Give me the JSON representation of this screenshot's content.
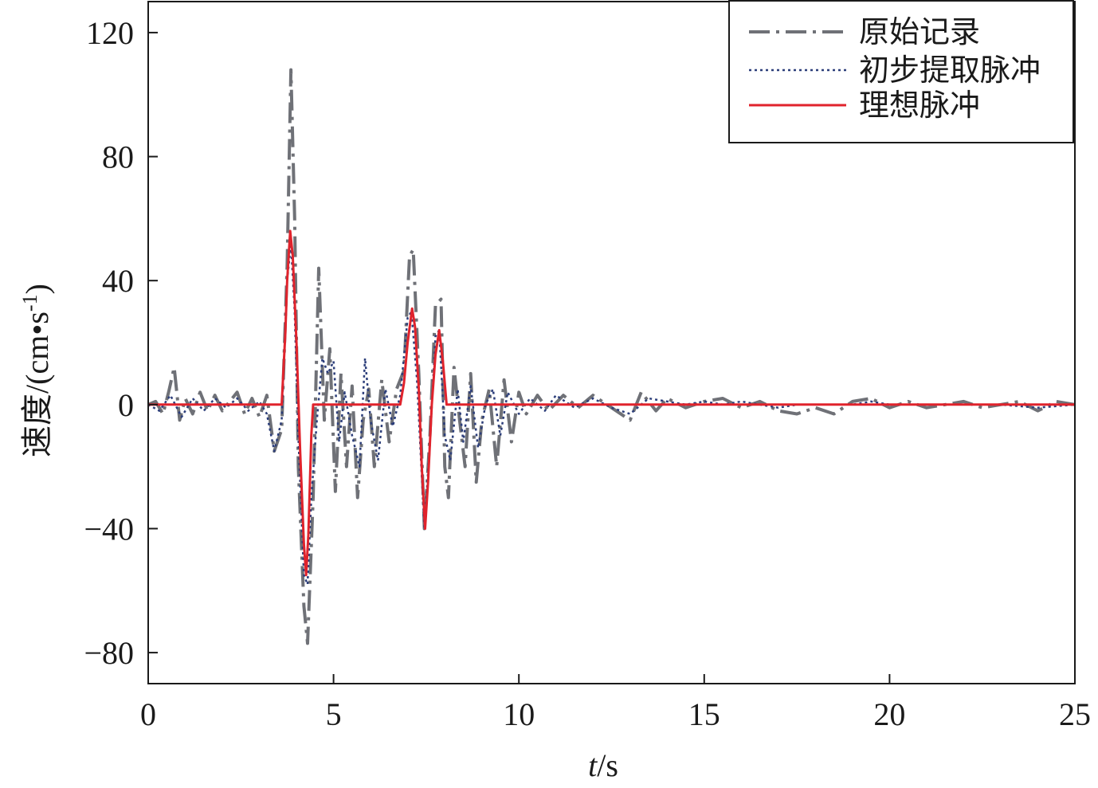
{
  "chart_data": {
    "type": "line",
    "xlabel_italic": "t",
    "xlabel_unit": "/s",
    "ylabel_main": "速度/(cm•s",
    "ylabel_sup": "-1",
    "ylabel_close": ")",
    "xlim": [
      0,
      25
    ],
    "ylim": [
      -90,
      130
    ],
    "xticks": [
      0,
      5,
      10,
      15,
      20,
      25
    ],
    "xtick_labels": [
      "0",
      "5",
      "10",
      "15",
      "20",
      "25"
    ],
    "yticks": [
      120,
      80,
      40,
      0,
      -40,
      -80
    ],
    "ytick_labels": [
      "120",
      "80",
      "40",
      "0",
      "−40",
      "−80"
    ],
    "grid": false,
    "legend_position": "top-right",
    "series": [
      {
        "name": "原始记录",
        "style": "dash-dot",
        "color": "#6f7177",
        "points": [
          [
            0.0,
            0
          ],
          [
            0.2,
            1
          ],
          [
            0.4,
            -3
          ],
          [
            0.55,
            4
          ],
          [
            0.7,
            12
          ],
          [
            0.85,
            -5
          ],
          [
            1.0,
            2
          ],
          [
            1.2,
            -3
          ],
          [
            1.4,
            4
          ],
          [
            1.6,
            -2
          ],
          [
            1.8,
            3
          ],
          [
            2.0,
            -2
          ],
          [
            2.2,
            1
          ],
          [
            2.4,
            4
          ],
          [
            2.6,
            -3
          ],
          [
            2.8,
            2
          ],
          [
            3.0,
            -4
          ],
          [
            3.2,
            3
          ],
          [
            3.4,
            -15
          ],
          [
            3.6,
            -8
          ],
          [
            3.75,
            45
          ],
          [
            3.85,
            108
          ],
          [
            3.95,
            60
          ],
          [
            4.05,
            -20
          ],
          [
            4.2,
            -65
          ],
          [
            4.3,
            -77
          ],
          [
            4.45,
            -30
          ],
          [
            4.6,
            44
          ],
          [
            4.75,
            -5
          ],
          [
            4.9,
            18
          ],
          [
            5.05,
            -28
          ],
          [
            5.2,
            10
          ],
          [
            5.35,
            -20
          ],
          [
            5.5,
            6
          ],
          [
            5.65,
            -30
          ],
          [
            5.8,
            -5
          ],
          [
            5.95,
            5
          ],
          [
            6.1,
            -20
          ],
          [
            6.3,
            8
          ],
          [
            6.5,
            -12
          ],
          [
            6.7,
            5
          ],
          [
            6.9,
            11
          ],
          [
            7.05,
            48
          ],
          [
            7.15,
            50
          ],
          [
            7.3,
            10
          ],
          [
            7.45,
            -40
          ],
          [
            7.6,
            -10
          ],
          [
            7.75,
            32
          ],
          [
            7.9,
            34
          ],
          [
            8.0,
            -20
          ],
          [
            8.1,
            -30
          ],
          [
            8.25,
            12
          ],
          [
            8.4,
            -5
          ],
          [
            8.55,
            -20
          ],
          [
            8.7,
            10
          ],
          [
            8.85,
            -25
          ],
          [
            9.0,
            -5
          ],
          [
            9.2,
            5
          ],
          [
            9.4,
            -20
          ],
          [
            9.6,
            8
          ],
          [
            9.8,
            -12
          ],
          [
            10.0,
            4
          ],
          [
            10.2,
            -3
          ],
          [
            10.5,
            3
          ],
          [
            10.8,
            -2
          ],
          [
            11.2,
            3
          ],
          [
            11.6,
            -1
          ],
          [
            12.0,
            3
          ],
          [
            12.5,
            -1
          ],
          [
            13.0,
            -5
          ],
          [
            13.3,
            4
          ],
          [
            13.7,
            -2
          ],
          [
            14.0,
            2
          ],
          [
            14.5,
            -1
          ],
          [
            15.0,
            1
          ],
          [
            15.5,
            2
          ],
          [
            16.0,
            -1
          ],
          [
            16.5,
            1
          ],
          [
            17.0,
            -2
          ],
          [
            17.5,
            -3
          ],
          [
            18.0,
            -1
          ],
          [
            18.5,
            -3
          ],
          [
            19.0,
            1
          ],
          [
            19.5,
            2
          ],
          [
            20.0,
            -1
          ],
          [
            20.5,
            1
          ],
          [
            21.0,
            -1
          ],
          [
            21.5,
            0
          ],
          [
            22.0,
            1
          ],
          [
            22.5,
            -1
          ],
          [
            23.0,
            0
          ],
          [
            23.5,
            1
          ],
          [
            24.0,
            -2
          ],
          [
            24.5,
            1
          ],
          [
            25.0,
            0
          ]
        ]
      },
      {
        "name": "初步提取脉冲",
        "style": "dotted",
        "color": "#2c3e7a",
        "points": [
          [
            0.0,
            0
          ],
          [
            0.3,
            -2
          ],
          [
            0.6,
            3
          ],
          [
            0.9,
            -4
          ],
          [
            1.2,
            2
          ],
          [
            1.5,
            -2
          ],
          [
            1.8,
            2
          ],
          [
            2.1,
            -1
          ],
          [
            2.4,
            2
          ],
          [
            2.7,
            -2
          ],
          [
            3.0,
            1
          ],
          [
            3.2,
            -3
          ],
          [
            3.4,
            -15
          ],
          [
            3.6,
            -5
          ],
          [
            3.75,
            40
          ],
          [
            3.85,
            52
          ],
          [
            3.95,
            30
          ],
          [
            4.05,
            -10
          ],
          [
            4.2,
            -55
          ],
          [
            4.3,
            -58
          ],
          [
            4.4,
            -30
          ],
          [
            4.55,
            -5
          ],
          [
            4.7,
            15
          ],
          [
            4.85,
            10
          ],
          [
            5.0,
            14
          ],
          [
            5.15,
            -12
          ],
          [
            5.3,
            4
          ],
          [
            5.5,
            -10
          ],
          [
            5.7,
            -20
          ],
          [
            5.85,
            15
          ],
          [
            6.0,
            -5
          ],
          [
            6.2,
            -18
          ],
          [
            6.4,
            5
          ],
          [
            6.6,
            -7
          ],
          [
            6.8,
            3
          ],
          [
            7.0,
            28
          ],
          [
            7.1,
            30
          ],
          [
            7.25,
            8
          ],
          [
            7.45,
            -40
          ],
          [
            7.6,
            -12
          ],
          [
            7.75,
            22
          ],
          [
            7.85,
            24
          ],
          [
            8.0,
            -10
          ],
          [
            8.15,
            -18
          ],
          [
            8.35,
            5
          ],
          [
            8.5,
            -12
          ],
          [
            8.7,
            6
          ],
          [
            8.9,
            -14
          ],
          [
            9.1,
            0
          ],
          [
            9.3,
            5
          ],
          [
            9.5,
            -10
          ],
          [
            9.7,
            4
          ],
          [
            10.0,
            -3
          ],
          [
            10.3,
            2
          ],
          [
            10.7,
            -2
          ],
          [
            11.0,
            3
          ],
          [
            11.5,
            -1
          ],
          [
            12.0,
            2
          ],
          [
            12.5,
            -1
          ],
          [
            13.0,
            -3
          ],
          [
            13.5,
            2
          ],
          [
            14.0,
            1
          ],
          [
            14.5,
            0
          ],
          [
            15.0,
            1
          ],
          [
            15.5,
            0
          ],
          [
            16.0,
            1
          ],
          [
            16.5,
            0
          ],
          [
            17.0,
            -1
          ],
          [
            17.5,
            0
          ],
          [
            18.0,
            0
          ],
          [
            18.5,
            0
          ],
          [
            19.0,
            0
          ],
          [
            19.5,
            1
          ],
          [
            20.0,
            0
          ],
          [
            21.0,
            0
          ],
          [
            22.0,
            0
          ],
          [
            23.0,
            0
          ],
          [
            24.0,
            -1
          ],
          [
            25.0,
            0
          ]
        ]
      },
      {
        "name": "理想脉冲",
        "style": "solid",
        "color": "#e0232c",
        "points": [
          [
            0.0,
            0
          ],
          [
            3.6,
            0
          ],
          [
            3.7,
            23
          ],
          [
            3.75,
            40
          ],
          [
            3.83,
            56
          ],
          [
            3.9,
            48
          ],
          [
            4.0,
            20
          ],
          [
            4.1,
            -15
          ],
          [
            4.2,
            -45
          ],
          [
            4.26,
            -55
          ],
          [
            4.32,
            -42
          ],
          [
            4.4,
            -10
          ],
          [
            4.45,
            0
          ],
          [
            6.8,
            0
          ],
          [
            6.9,
            7
          ],
          [
            7.0,
            20
          ],
          [
            7.12,
            31
          ],
          [
            7.2,
            25
          ],
          [
            7.3,
            5
          ],
          [
            7.38,
            -20
          ],
          [
            7.47,
            -40
          ],
          [
            7.55,
            -25
          ],
          [
            7.65,
            0
          ],
          [
            7.75,
            16
          ],
          [
            7.85,
            24
          ],
          [
            7.95,
            14
          ],
          [
            8.05,
            0
          ],
          [
            25.0,
            0
          ]
        ]
      }
    ]
  }
}
